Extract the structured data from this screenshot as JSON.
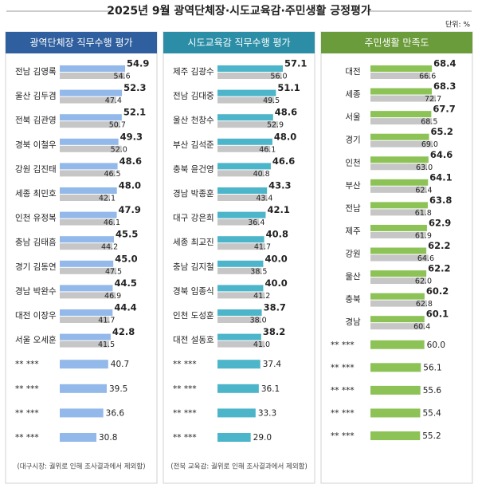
{
  "title": "2025년 9월 광역단체장·시도교육감·주민생활 긍정평가",
  "unit": "단위: %",
  "chart_data": [
    {
      "type": "bar",
      "title": "광역단체장 직무수행 평가",
      "header_color": "#2f5f9e",
      "categories": [
        "전남 김영록",
        "울산 김두겸",
        "전북 김관영",
        "경북 이철우",
        "강원 김진태",
        "세종 최민호",
        "인천 유정복",
        "충남 김태흠",
        "경기 김동연",
        "경남 박완수",
        "대전 이장우",
        "서울 오세훈",
        "** ***",
        "** ***",
        "** ***",
        "** ***"
      ],
      "series": [
        {
          "color": "#93b8ea",
          "values": [
            54.9,
            52.3,
            52.1,
            49.3,
            48.6,
            48.0,
            47.9,
            45.5,
            45.0,
            44.5,
            44.4,
            42.8,
            40.7,
            39.5,
            36.6,
            30.8
          ],
          "value_labels": [
            "54.9",
            "52.3",
            "52.1",
            "49.3",
            "48.6",
            "48.0",
            "47.9",
            "45.5",
            "45.0",
            "44.5",
            "44.4",
            "42.8",
            "40.7",
            "39.5",
            "36.6",
            "30.8"
          ]
        },
        {
          "color": "#c6c6c6",
          "values": [
            54.6,
            47.4,
            50.7,
            52.0,
            46.5,
            42.1,
            46.1,
            44.2,
            47.5,
            46.9,
            41.7,
            41.5,
            null,
            null,
            null,
            null
          ],
          "value_labels": [
            "54.6",
            "47.4",
            "50.7",
            "52.0",
            "46.5",
            "42.1",
            "46.1",
            "44.2",
            "47.5",
            "46.9",
            "41.7",
            "41.5",
            null,
            null,
            null,
            null
          ]
        }
      ],
      "note": "(대구시장: 궐위로 인해 조사결과에서 제외함)"
    },
    {
      "type": "bar",
      "title": "시도교육감 직무수행 평가",
      "header_color": "#2b8ea6",
      "categories": [
        "제주 김광수",
        "전남 김대중",
        "울산 천창수",
        "부산 김석준",
        "충북 윤건영",
        "경남 박종훈",
        "대구 강은희",
        "세종 최교진",
        "충남 김지철",
        "경북 임종식",
        "인천 도성훈",
        "대전 설동호",
        "** ***",
        "** ***",
        "** ***",
        "** ***"
      ],
      "series": [
        {
          "color": "#4db5ca",
          "values": [
            57.1,
            51.1,
            48.6,
            48.0,
            46.6,
            43.3,
            42.1,
            40.8,
            40.0,
            40.0,
            38.7,
            38.2,
            37.4,
            36.1,
            33.3,
            29.0
          ],
          "value_labels": [
            "57.1",
            "51.1",
            "48.6",
            "48.0",
            "46.6",
            "43.3",
            "42.1",
            "40.8",
            "40.0",
            "40.0",
            "38.7",
            "38.2",
            "37.4",
            "36.1",
            "33.3",
            "29.0"
          ]
        },
        {
          "color": "#c6c6c6",
          "values": [
            56.0,
            49.5,
            52.9,
            46.1,
            40.8,
            43.4,
            36.4,
            41.7,
            38.5,
            41.2,
            38.0,
            41.0,
            null,
            null,
            null,
            null
          ],
          "value_labels": [
            "56.0",
            "49.5",
            "52.9",
            "46.1",
            "40.8",
            "43.4",
            "36.4",
            "41.7",
            "38.5",
            "41.2",
            "38.0",
            "41.0",
            null,
            null,
            null,
            null
          ]
        }
      ],
      "note": "(전북 교육감: 궐위로 인해 조사결과에서 제외함)"
    },
    {
      "type": "bar",
      "title": "주민생활 만족도",
      "header_color": "#6b9c3b",
      "categories": [
        "대전",
        "세종",
        "서울",
        "경기",
        "인천",
        "부산",
        "전남",
        "제주",
        "강원",
        "울산",
        "충북",
        "경남",
        "** ***",
        "** ***",
        "** ***",
        "** ***",
        "** ***"
      ],
      "series": [
        {
          "color": "#8dc356",
          "values": [
            68.4,
            68.3,
            67.7,
            65.2,
            64.6,
            64.1,
            63.8,
            62.9,
            62.2,
            62.2,
            60.2,
            60.1,
            60.0,
            56.1,
            55.6,
            55.4,
            55.2
          ],
          "value_labels": [
            "68.4",
            "68.3",
            "67.7",
            "65.2",
            "64.6",
            "64.1",
            "63.8",
            "62.9",
            "62.2",
            "62.2",
            "60.2",
            "60.1",
            "60.0",
            "56.1",
            "55.6",
            "55.4",
            "55.2"
          ]
        },
        {
          "color": "#c6c6c6",
          "values": [
            66.6,
            72.7,
            68.5,
            69.0,
            63.0,
            62.4,
            61.8,
            61.9,
            64.6,
            62.0,
            62.8,
            60.4,
            null,
            null,
            null,
            null,
            null
          ],
          "value_labels": [
            "66.6",
            "72.7",
            "68.5",
            "69.0",
            "63.0",
            "62.4",
            "61.8",
            "61.9",
            "64.6",
            "62.0",
            "62.8",
            "60.4",
            null,
            null,
            null,
            null,
            null
          ]
        }
      ]
    }
  ]
}
